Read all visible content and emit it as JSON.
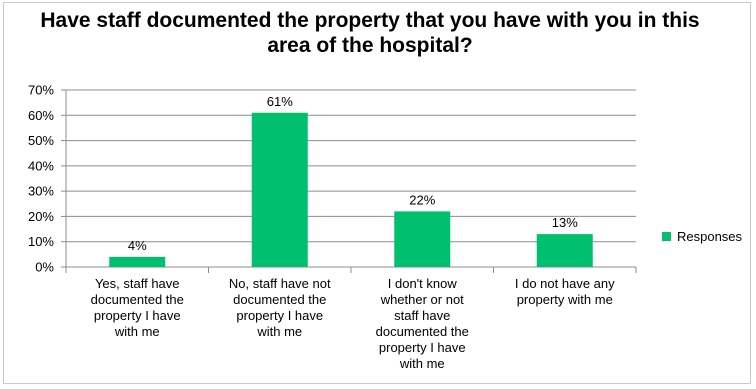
{
  "chart_data": {
    "type": "bar",
    "title": "Have staff documented the property that you have with you in this area of the hospital?",
    "categories": [
      [
        "Yes, staff have",
        "documented the",
        "property I have",
        "with me"
      ],
      [
        "No, staff have not",
        "documented the",
        "property I have",
        "with me"
      ],
      [
        "I don't know",
        "whether or not",
        "staff have",
        "documented the",
        "property I have",
        "with me"
      ],
      [
        "I do not have any",
        "property with me"
      ]
    ],
    "series": [
      {
        "name": "Responses",
        "values": [
          4,
          61,
          22,
          13
        ],
        "data_labels": [
          "4%",
          "61%",
          "22%",
          "13%"
        ],
        "color": "#00c070"
      }
    ],
    "y_ticks": [
      "0%",
      "10%",
      "20%",
      "30%",
      "40%",
      "50%",
      "60%",
      "70%"
    ],
    "ylim": [
      0,
      70
    ],
    "grid": true,
    "legend_position": "right"
  }
}
